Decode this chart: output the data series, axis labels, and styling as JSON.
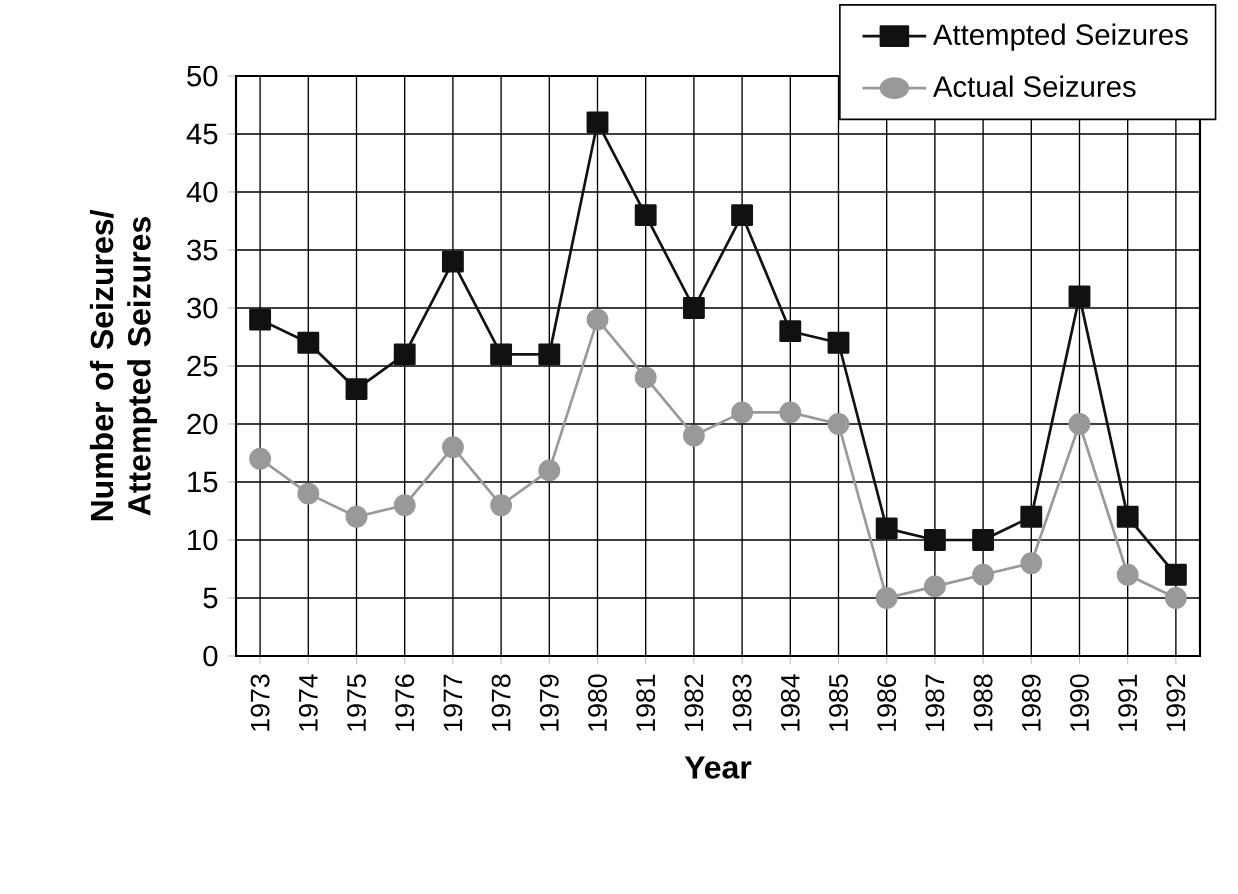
{
  "chart_data": {
    "type": "line",
    "xlabel": "Year",
    "ylabel": "Number of Seizures/ Attempted Seizures",
    "categories": [
      "1973",
      "1974",
      "1975",
      "1976",
      "1977",
      "1978",
      "1979",
      "1980",
      "1981",
      "1982",
      "1983",
      "1984",
      "1985",
      "1986",
      "1987",
      "1988",
      "1989",
      "1990",
      "1991",
      "1992"
    ],
    "series": [
      {
        "name": "Attempted Seizures",
        "color": "#111111",
        "marker": "square",
        "values": [
          29,
          27,
          23,
          26,
          34,
          26,
          26,
          46,
          38,
          30,
          38,
          28,
          27,
          11,
          10,
          10,
          12,
          31,
          12,
          7
        ]
      },
      {
        "name": "Actual Seizures",
        "color": "#999999",
        "marker": "circle",
        "values": [
          17,
          14,
          12,
          13,
          18,
          13,
          16,
          29,
          24,
          19,
          21,
          21,
          20,
          5,
          6,
          7,
          8,
          20,
          7,
          5
        ]
      }
    ],
    "ylim": [
      0,
      50
    ],
    "yticks": [
      0,
      5,
      10,
      15,
      20,
      25,
      30,
      35,
      40,
      45,
      50
    ],
    "grid": true,
    "legend": "top right",
    "line_style": "solid"
  }
}
